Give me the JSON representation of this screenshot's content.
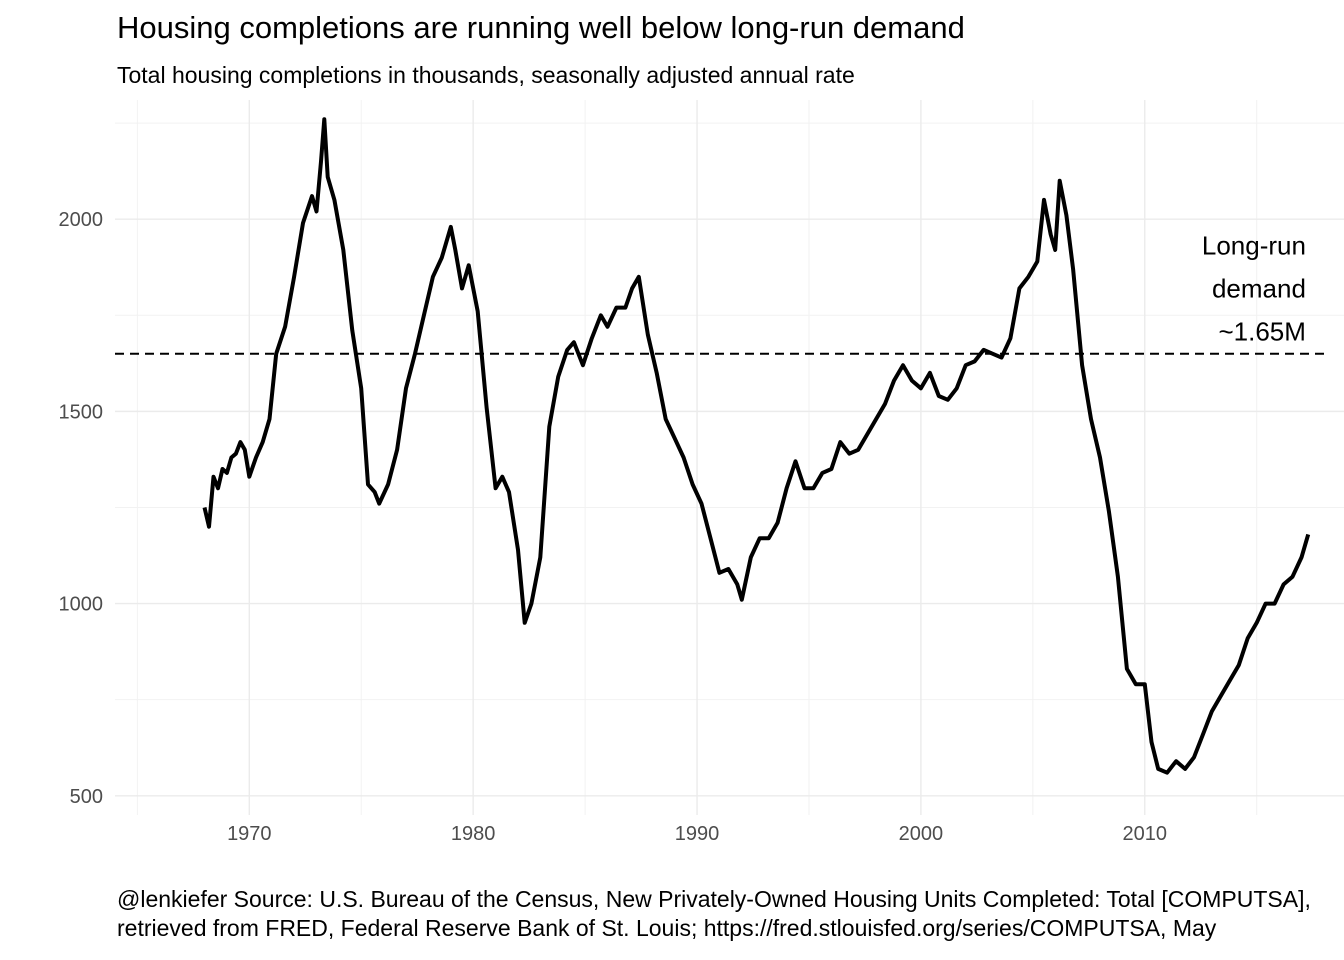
{
  "chart_data": {
    "type": "line",
    "title": "Housing completions are running well below long-run demand",
    "subtitle": "Total housing completions in thousands, seasonally adjusted annual rate",
    "xlabel": "",
    "ylabel": "",
    "xlim": [
      1964.0,
      2018.9
    ],
    "ylim": [
      450,
      2310
    ],
    "x_ticks": [
      1970,
      1980,
      1990,
      2000,
      2010
    ],
    "x_tick_labels": [
      "1970",
      "1980",
      "1990",
      "2000",
      "2010"
    ],
    "y_ticks": [
      500,
      1000,
      1500,
      2000
    ],
    "y_tick_labels": [
      "500",
      "1000",
      "1500",
      "2000"
    ],
    "grid": true,
    "reference_line": {
      "y": 1650,
      "style": "dashed"
    },
    "annotation": {
      "lines": [
        "Long-run",
        "demand",
        "~1.65M"
      ],
      "x": 2017.2,
      "y": 1820
    },
    "caption": [
      "@lenkiefer Source: U.S. Bureau of the Census, New Privately-Owned Housing Units Completed: Total [COMPUTSA],",
      "retrieved from FRED, Federal Reserve Bank of St. Louis; https://fred.stlouisfed.org/series/COMPUTSA, May"
    ],
    "series": [
      {
        "x": [
          1968.0,
          1968.2,
          1968.4,
          1968.6,
          1968.8,
          1969.0,
          1969.2,
          1969.4,
          1969.6,
          1969.8,
          1970.0,
          1970.3,
          1970.6,
          1970.9,
          1971.2,
          1971.6,
          1972.0,
          1972.4,
          1972.8,
          1973.0,
          1973.2,
          1973.35,
          1973.5,
          1973.8,
          1974.2,
          1974.6,
          1975.0,
          1975.3,
          1975.6,
          1975.8,
          1976.2,
          1976.6,
          1977.0,
          1977.4,
          1977.8,
          1978.2,
          1978.6,
          1979.0,
          1979.2,
          1979.5,
          1979.8,
          1980.2,
          1980.6,
          1981.0,
          1981.3,
          1981.6,
          1982.0,
          1982.3,
          1982.6,
          1983.0,
          1983.4,
          1983.8,
          1984.2,
          1984.5,
          1984.9,
          1985.3,
          1985.7,
          1986.0,
          1986.4,
          1986.8,
          1987.1,
          1987.4,
          1987.8,
          1988.2,
          1988.6,
          1989.0,
          1989.4,
          1989.8,
          1990.2,
          1990.6,
          1991.0,
          1991.4,
          1991.8,
          1992.0,
          1992.4,
          1992.8,
          1993.2,
          1993.6,
          1994.0,
          1994.4,
          1994.8,
          1995.2,
          1995.6,
          1996.0,
          1996.4,
          1996.8,
          1997.2,
          1997.6,
          1998.0,
          1998.4,
          1998.8,
          1999.2,
          1999.6,
          2000.0,
          2000.4,
          2000.8,
          2001.2,
          2001.6,
          2002.0,
          2002.4,
          2002.8,
          2003.2,
          2003.6,
          2004.0,
          2004.4,
          2004.8,
          2005.2,
          2005.5,
          2005.8,
          2006.0,
          2006.2,
          2006.5,
          2006.8,
          2007.2,
          2007.6,
          2008.0,
          2008.4,
          2008.8,
          2009.2,
          2009.6,
          2010.0,
          2010.3,
          2010.6,
          2011.0,
          2011.4,
          2011.8,
          2012.2,
          2012.6,
          2013.0,
          2013.4,
          2013.8,
          2014.2,
          2014.6,
          2015.0,
          2015.4,
          2015.8,
          2016.2,
          2016.6,
          2017.0,
          2017.3
        ],
        "values": [
          1250,
          1200,
          1330,
          1300,
          1350,
          1340,
          1380,
          1390,
          1420,
          1400,
          1330,
          1380,
          1420,
          1480,
          1650,
          1720,
          1850,
          1990,
          2060,
          2020,
          2150,
          2260,
          2110,
          2050,
          1920,
          1710,
          1560,
          1310,
          1290,
          1260,
          1310,
          1400,
          1560,
          1650,
          1750,
          1850,
          1900,
          1980,
          1920,
          1820,
          1880,
          1760,
          1510,
          1300,
          1330,
          1290,
          1140,
          950,
          1000,
          1120,
          1460,
          1590,
          1660,
          1680,
          1620,
          1690,
          1750,
          1720,
          1770,
          1770,
          1820,
          1850,
          1700,
          1600,
          1480,
          1430,
          1380,
          1310,
          1260,
          1170,
          1080,
          1090,
          1050,
          1010,
          1120,
          1170,
          1170,
          1210,
          1300,
          1370,
          1300,
          1300,
          1340,
          1350,
          1420,
          1390,
          1400,
          1440,
          1480,
          1520,
          1580,
          1620,
          1580,
          1560,
          1600,
          1540,
          1530,
          1560,
          1620,
          1630,
          1660,
          1650,
          1640,
          1690,
          1820,
          1850,
          1890,
          2050,
          1960,
          1920,
          2100,
          2010,
          1870,
          1620,
          1480,
          1380,
          1240,
          1070,
          830,
          790,
          790,
          640,
          570,
          560,
          590,
          570,
          600,
          660,
          720,
          760,
          800,
          840,
          910,
          950,
          1000,
          1000,
          1050,
          1070,
          1120,
          1180
        ]
      }
    ]
  }
}
